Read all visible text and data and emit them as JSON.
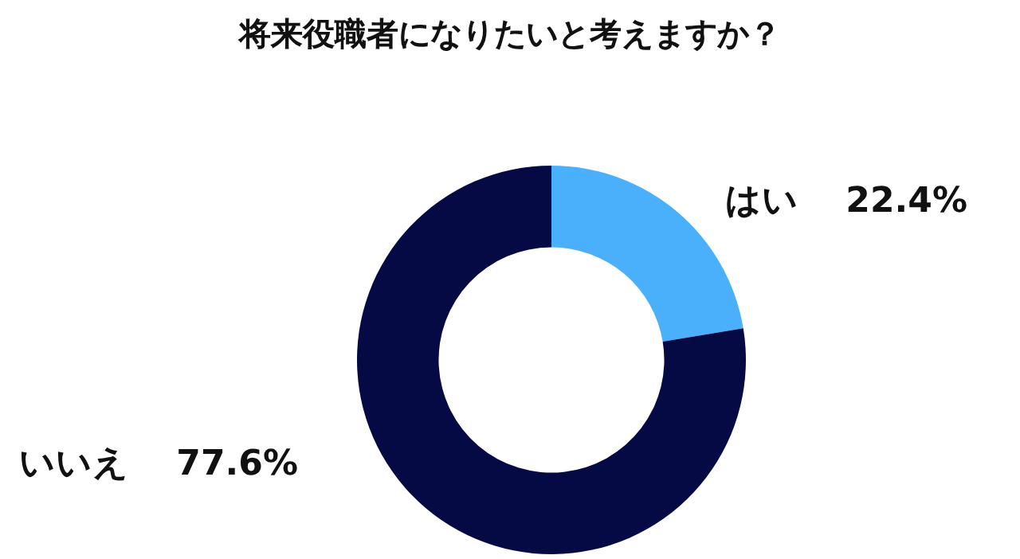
{
  "chart_data": {
    "type": "donut",
    "title": "将来役職者になりたいと考えますか？",
    "categories": [
      "はい",
      "いいえ"
    ],
    "values": [
      22.4,
      77.6
    ],
    "value_labels": [
      "22.4%",
      "77.6%"
    ],
    "colors": [
      "#4ab0fc",
      "#050a44"
    ]
  }
}
